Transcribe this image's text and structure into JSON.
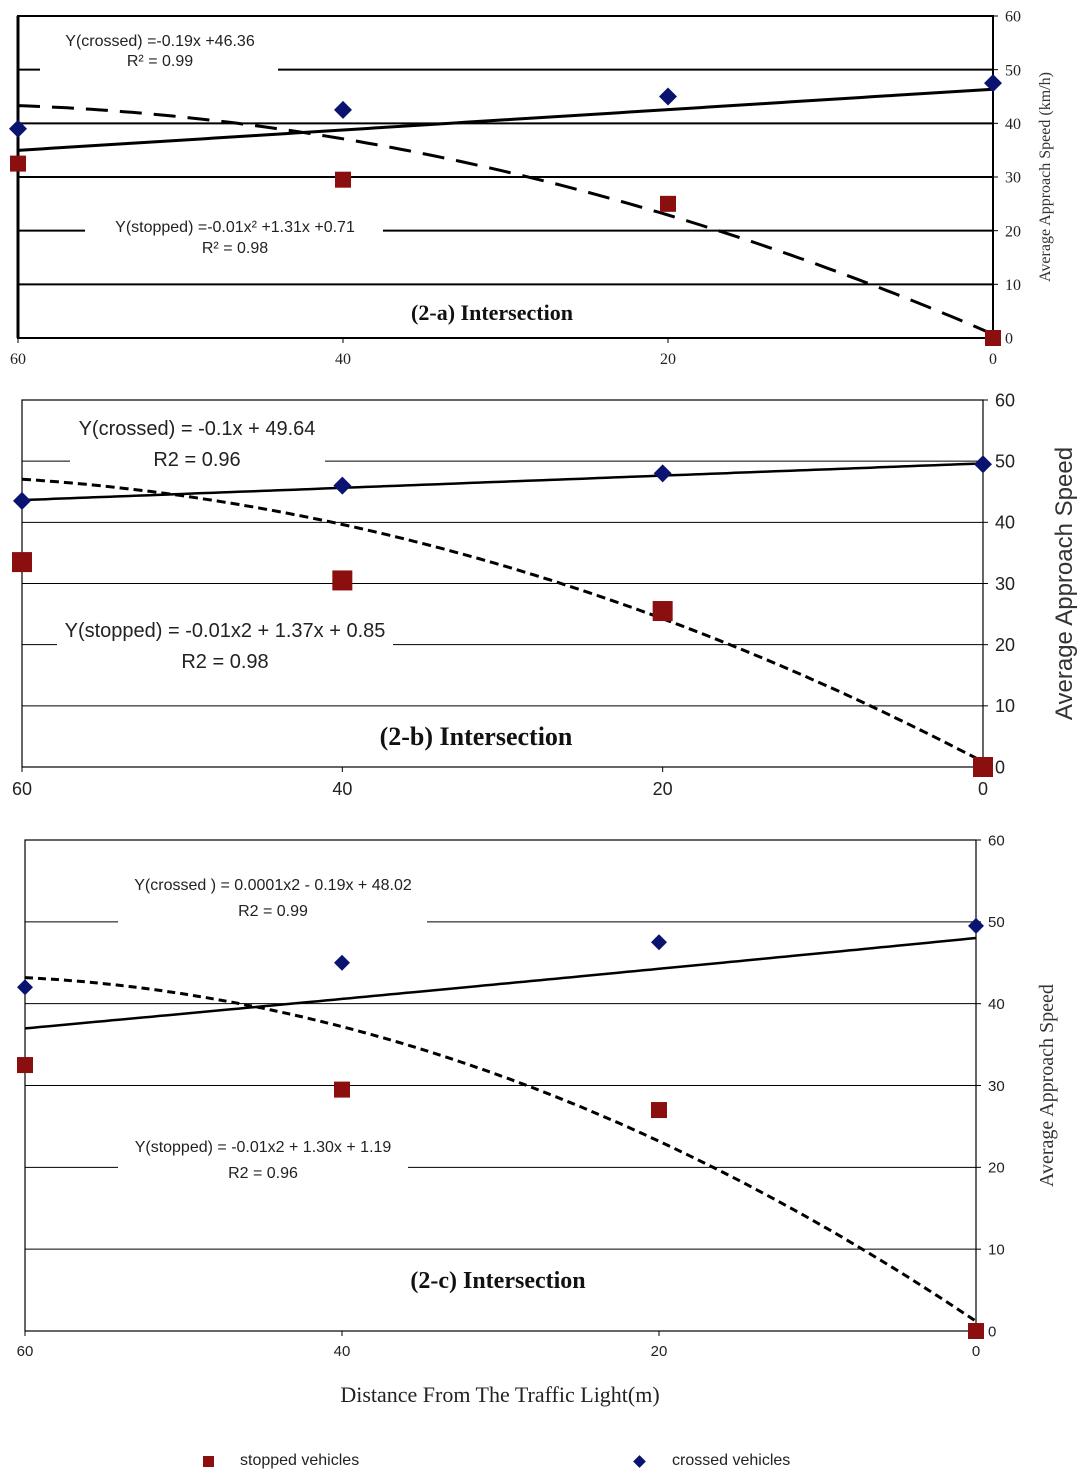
{
  "chart_data": [
    {
      "type": "scatter",
      "title": "(2-a) Intersection",
      "xlabel": "",
      "ylabel": "Average Approach Speed (km/h)",
      "xlim": [
        60,
        0
      ],
      "ylim": [
        0,
        60
      ],
      "x_ticks": [
        "60",
        "40",
        "20",
        "0"
      ],
      "y_ticks": [
        "0",
        "10",
        "20",
        "30",
        "40",
        "50",
        "60"
      ],
      "grid": "horizontal",
      "series": [
        {
          "name": "crossed vehicles",
          "x": [
            60,
            40,
            20,
            0
          ],
          "values": [
            39,
            42.5,
            45,
            47.5
          ],
          "trend": {
            "equation": "Y(crossed) =-0.19x +46.36",
            "r2": "R² = 0.99",
            "c2": 0,
            "c1": -0.19,
            "c0": 46.36
          }
        },
        {
          "name": "stopped vehicles",
          "x": [
            60,
            40,
            20,
            0
          ],
          "values": [
            32.5,
            29.5,
            25,
            0
          ],
          "trend": {
            "equation": "Y(stopped) =-0.01x² +1.31x +0.71",
            "r2": "R² = 0.98",
            "c2": -0.01,
            "c1": 1.31,
            "c0": 0.71
          }
        }
      ]
    },
    {
      "type": "scatter",
      "title": "(2-b) Intersection",
      "xlabel": "",
      "ylabel": "Average Approach Speed",
      "xlim": [
        60,
        0
      ],
      "ylim": [
        0,
        60
      ],
      "x_ticks": [
        "60",
        "40",
        "20",
        "0"
      ],
      "y_ticks": [
        "0",
        "10",
        "20",
        "30",
        "40",
        "50",
        "60"
      ],
      "grid": "horizontal",
      "series": [
        {
          "name": "crossed vehicles",
          "x": [
            60,
            40,
            20,
            0
          ],
          "values": [
            43.5,
            46,
            48,
            49.5
          ],
          "trend": {
            "equation": "Y(crossed) = -0.1x + 49.64",
            "r2": "R2 = 0.96",
            "c2": 0,
            "c1": -0.1,
            "c0": 49.64
          }
        },
        {
          "name": "stopped vehicles",
          "x": [
            60,
            40,
            20,
            0
          ],
          "values": [
            33.5,
            30.5,
            25.5,
            0
          ],
          "trend": {
            "equation": "Y(stopped) = -0.01x2 + 1.37x + 0.85",
            "r2": "R2 = 0.98",
            "c2": -0.01,
            "c1": 1.37,
            "c0": 0.85
          }
        }
      ]
    },
    {
      "type": "scatter",
      "title": "(2-c) Intersection",
      "xlabel": "Distance From The Traffic Light(m)",
      "ylabel": "Average Approach Speed",
      "xlim": [
        60,
        0
      ],
      "ylim": [
        0,
        60
      ],
      "x_ticks": [
        "60",
        "40",
        "20",
        "0"
      ],
      "y_ticks": [
        "0",
        "10",
        "20",
        "30",
        "40",
        "50",
        "60"
      ],
      "grid": "horizontal",
      "series": [
        {
          "name": "crossed vehicles",
          "x": [
            60,
            40,
            20,
            0
          ],
          "values": [
            42,
            45,
            47.5,
            49.5
          ],
          "trend": {
            "equation": "Y(crossed ) = 0.0001x2 - 0.19x + 48.02",
            "r2": "R2 = 0.99",
            "c2": 0.0001,
            "c1": -0.19,
            "c0": 48.02
          }
        },
        {
          "name": "stopped vehicles",
          "x": [
            60,
            40,
            20,
            0
          ],
          "values": [
            32.5,
            29.5,
            27,
            0
          ],
          "trend": {
            "equation": "Y(stopped) = -0.01x2 + 1.30x + 1.19",
            "r2": "R2 = 0.96",
            "c2": -0.01,
            "c1": 1.3,
            "c0": 1.19
          }
        }
      ]
    }
  ],
  "legend": {
    "stopped_label": "stopped vehicles",
    "crossed_label": "crossed vehicles"
  },
  "colors": {
    "stopped": "#8b0f0f",
    "crossed": "#0a1470",
    "line": "#000000"
  }
}
